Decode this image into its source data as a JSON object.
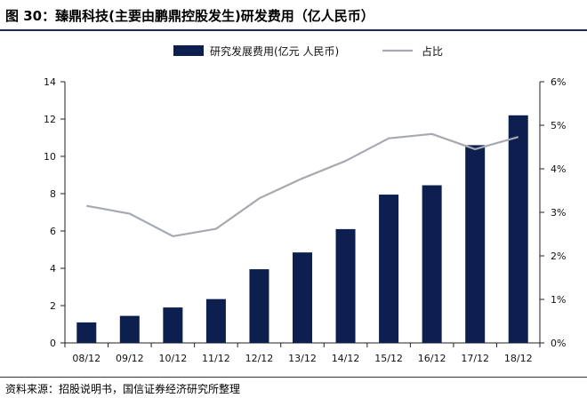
{
  "header": {
    "title": "图 30：臻鼎科技(主要由鹏鼎控股发生)研发费用（亿人民币）"
  },
  "footer": {
    "source": "资料来源：招股说明书，国信证券经济研究所整理"
  },
  "chart_data": {
    "type": "bar",
    "title": "臻鼎科技(主要由鹏鼎控股发生)研发费用（亿人民币）",
    "categories": [
      "08/12",
      "09/12",
      "10/12",
      "11/12",
      "12/12",
      "13/12",
      "14/12",
      "15/12",
      "16/12",
      "17/12",
      "18/12"
    ],
    "series": [
      {
        "name": "研究发展费用(亿元 人民币)",
        "type": "bar",
        "axis": "left",
        "color": "#0d1f4f",
        "values": [
          1.1,
          1.45,
          1.9,
          2.35,
          3.95,
          4.85,
          6.1,
          7.95,
          8.45,
          10.6,
          12.2
        ]
      },
      {
        "name": "占比",
        "type": "line",
        "axis": "right",
        "color": "#a6aab0",
        "values": [
          3.15,
          2.97,
          2.45,
          2.62,
          3.32,
          3.78,
          4.18,
          4.7,
          4.8,
          4.45,
          4.73
        ]
      }
    ],
    "y_left": {
      "min": 0,
      "max": 14,
      "ticks": [
        0,
        2,
        4,
        6,
        8,
        10,
        12,
        14
      ]
    },
    "y_right": {
      "min": 0,
      "max": 6,
      "ticks": [
        0,
        1,
        2,
        3,
        4,
        5,
        6
      ],
      "unit": "%"
    },
    "legend_position": "top-center",
    "grid": false
  }
}
